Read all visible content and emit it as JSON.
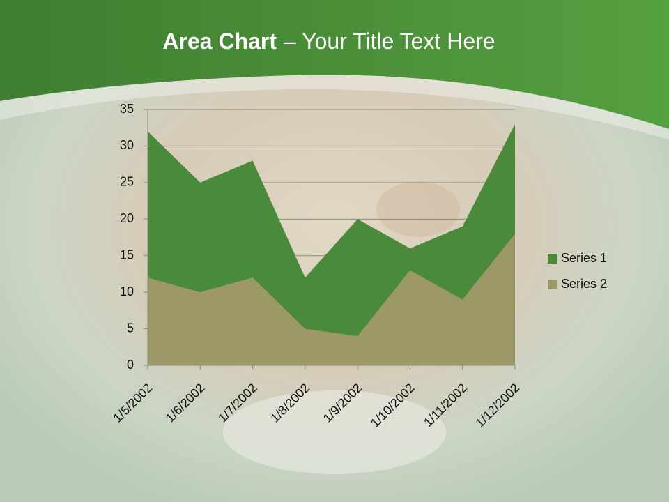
{
  "chart_data": {
    "type": "area",
    "title": {
      "bold": "Area Chart",
      "rest": "– Your Title Text Here"
    },
    "categories": [
      "1/5/2002",
      "1/6/2002",
      "1/7/2002",
      "1/8/2002",
      "1/9/2002",
      "1/10/2002",
      "1/11/2002",
      "1/12/2002"
    ],
    "series": [
      {
        "name": "Series 1",
        "color": "#4a8a3b",
        "values": [
          32,
          25,
          28,
          12,
          20,
          16,
          19,
          33
        ]
      },
      {
        "name": "Series 2",
        "color": "#9d9868",
        "values": [
          12,
          10,
          12,
          5,
          4,
          13,
          9,
          18
        ]
      }
    ],
    "ylim": [
      0,
      35
    ],
    "yticks": [
      0,
      5,
      10,
      15,
      20,
      25,
      30,
      35
    ],
    "grid": true,
    "legend": "right"
  }
}
